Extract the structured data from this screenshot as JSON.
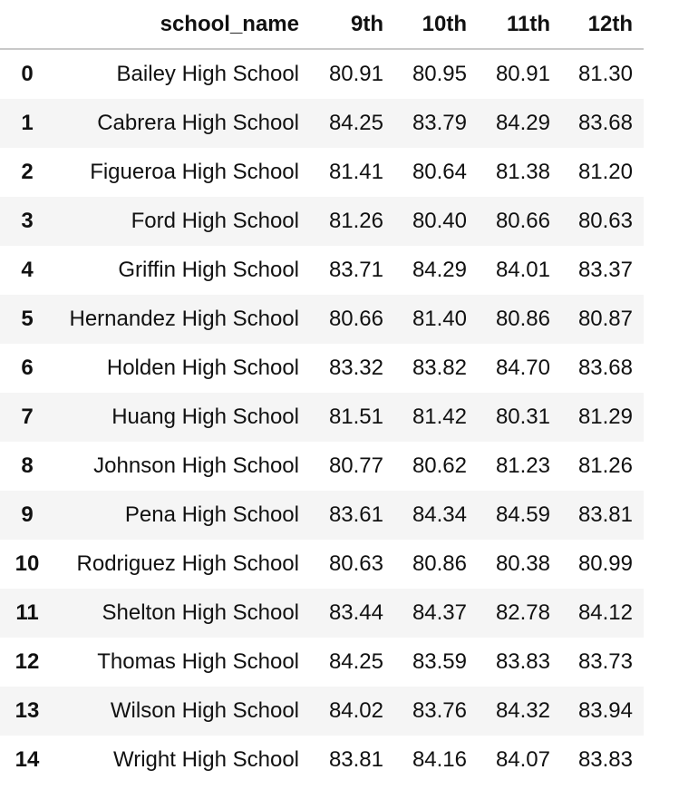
{
  "table": {
    "columns": {
      "index": "",
      "school_name": "school_name",
      "g9": "9th",
      "g10": "10th",
      "g11": "11th",
      "g12": "12th"
    },
    "rows": [
      {
        "index": "0",
        "school_name": "Bailey High School",
        "g9": "80.91",
        "g10": "80.95",
        "g11": "80.91",
        "g12": "81.30"
      },
      {
        "index": "1",
        "school_name": "Cabrera High School",
        "g9": "84.25",
        "g10": "83.79",
        "g11": "84.29",
        "g12": "83.68"
      },
      {
        "index": "2",
        "school_name": "Figueroa High School",
        "g9": "81.41",
        "g10": "80.64",
        "g11": "81.38",
        "g12": "81.20"
      },
      {
        "index": "3",
        "school_name": "Ford High School",
        "g9": "81.26",
        "g10": "80.40",
        "g11": "80.66",
        "g12": "80.63"
      },
      {
        "index": "4",
        "school_name": "Griffin High School",
        "g9": "83.71",
        "g10": "84.29",
        "g11": "84.01",
        "g12": "83.37"
      },
      {
        "index": "5",
        "school_name": "Hernandez High School",
        "g9": "80.66",
        "g10": "81.40",
        "g11": "80.86",
        "g12": "80.87"
      },
      {
        "index": "6",
        "school_name": "Holden High School",
        "g9": "83.32",
        "g10": "83.82",
        "g11": "84.70",
        "g12": "83.68"
      },
      {
        "index": "7",
        "school_name": "Huang High School",
        "g9": "81.51",
        "g10": "81.42",
        "g11": "80.31",
        "g12": "81.29"
      },
      {
        "index": "8",
        "school_name": "Johnson High School",
        "g9": "80.77",
        "g10": "80.62",
        "g11": "81.23",
        "g12": "81.26"
      },
      {
        "index": "9",
        "school_name": "Pena High School",
        "g9": "83.61",
        "g10": "84.34",
        "g11": "84.59",
        "g12": "83.81"
      },
      {
        "index": "10",
        "school_name": "Rodriguez High School",
        "g9": "80.63",
        "g10": "80.86",
        "g11": "80.38",
        "g12": "80.99"
      },
      {
        "index": "11",
        "school_name": "Shelton High School",
        "g9": "83.44",
        "g10": "84.37",
        "g11": "82.78",
        "g12": "84.12"
      },
      {
        "index": "12",
        "school_name": "Thomas High School",
        "g9": "84.25",
        "g10": "83.59",
        "g11": "83.83",
        "g12": "83.73"
      },
      {
        "index": "13",
        "school_name": "Wilson High School",
        "g9": "84.02",
        "g10": "83.76",
        "g11": "84.32",
        "g12": "83.94"
      },
      {
        "index": "14",
        "school_name": "Wright High School",
        "g9": "83.81",
        "g10": "84.16",
        "g11": "84.07",
        "g12": "83.83"
      }
    ]
  }
}
